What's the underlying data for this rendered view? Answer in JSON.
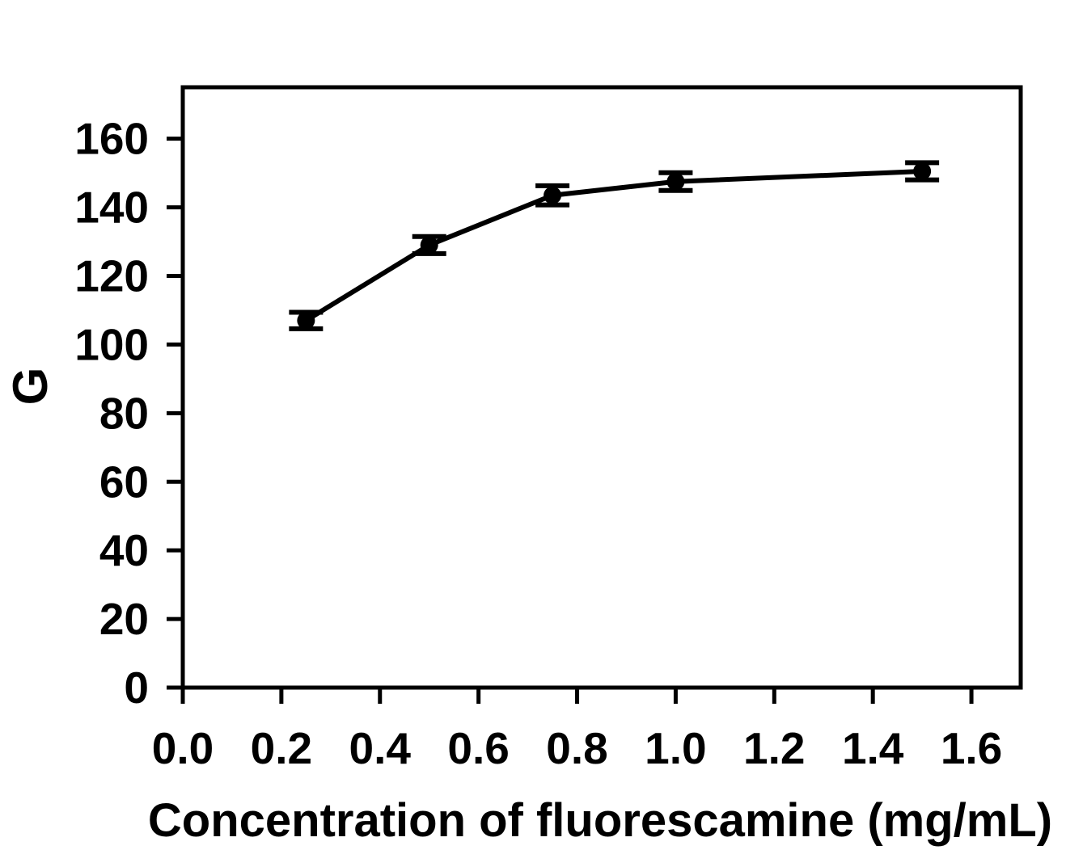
{
  "figure": {
    "background": "#ffffff",
    "ink": "#000000"
  },
  "chart_data": {
    "type": "line",
    "xlabel": "Concentration of fluorescamine (mg/mL)",
    "ylabel": "G",
    "marker": "filled-circle",
    "line_color": "#000000",
    "grid": false,
    "legend": null,
    "xlim": [
      0,
      1.7
    ],
    "ylim": [
      0,
      175
    ],
    "x": [
      0.25,
      0.5,
      0.75,
      1.0,
      1.5
    ],
    "y": [
      107,
      129,
      143.5,
      147.5,
      150.5
    ],
    "y_err": [
      2.4,
      2.5,
      2.8,
      2.6,
      2.5
    ],
    "xticks": [
      {
        "v": 0.0,
        "label": "0.0"
      },
      {
        "v": 0.2,
        "label": "0.2"
      },
      {
        "v": 0.4,
        "label": "0.4"
      },
      {
        "v": 0.6,
        "label": "0.6"
      },
      {
        "v": 0.8,
        "label": "0.8"
      },
      {
        "v": 1.0,
        "label": "1.0"
      },
      {
        "v": 1.2,
        "label": "1.2"
      },
      {
        "v": 1.4,
        "label": "1.4"
      },
      {
        "v": 1.6,
        "label": "1.6"
      }
    ],
    "yticks": [
      {
        "v": 0,
        "label": "0"
      },
      {
        "v": 20,
        "label": "20"
      },
      {
        "v": 40,
        "label": "40"
      },
      {
        "v": 60,
        "label": "60"
      },
      {
        "v": 80,
        "label": "80"
      },
      {
        "v": 100,
        "label": "100"
      },
      {
        "v": 120,
        "label": "120"
      },
      {
        "v": 140,
        "label": "140"
      },
      {
        "v": 160,
        "label": "160"
      }
    ]
  }
}
